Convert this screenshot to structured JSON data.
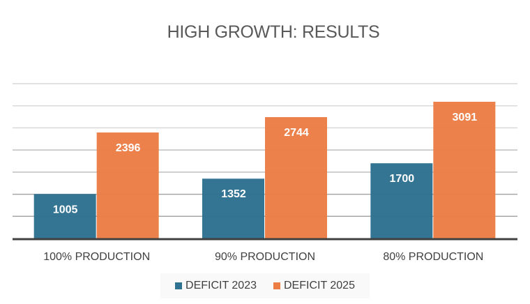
{
  "chart_data": {
    "type": "bar",
    "title": "HIGH GROWTH: RESULTS",
    "categories": [
      "100% PRODUCTION",
      "90% PRODUCTION",
      "80% PRODUCTION"
    ],
    "series": [
      {
        "name": "DEFICIT 2023",
        "color": "#2e7191",
        "values": [
          1005,
          1352,
          1700
        ]
      },
      {
        "name": "DEFICIT 2025",
        "color": "#eb7d45",
        "values": [
          2396,
          2744,
          3091
        ]
      }
    ],
    "xlabel": "",
    "ylabel": "",
    "ylim": [
      0,
      3500
    ],
    "y_tick_step": 500,
    "y_tick_labels_visible": false,
    "grid": true,
    "data_labels": true,
    "legend_position": "bottom"
  }
}
